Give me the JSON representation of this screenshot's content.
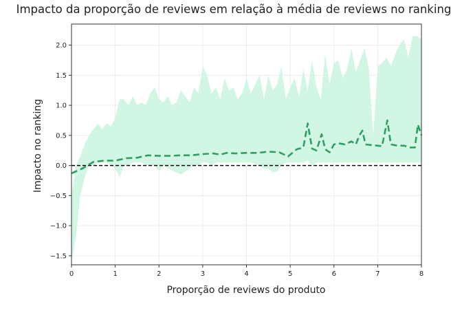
{
  "chart_data": {
    "type": "line",
    "title": "Impacto da proporção de reviews em relação à média de reviews no ranking",
    "xlabel": "Proporção de reviews do produto",
    "ylabel": "Impacto no ranking",
    "xlim": [
      0,
      8
    ],
    "ylim": [
      -1.65,
      2.35
    ],
    "x_ticks": [
      0,
      1,
      2,
      3,
      4,
      5,
      6,
      7,
      8
    ],
    "x_tick_labels": [
      "0",
      "1",
      "2",
      "3",
      "4",
      "5",
      "6",
      "7",
      "8"
    ],
    "y_ticks": [
      -1.5,
      -1.0,
      -0.5,
      0.0,
      0.5,
      1.0,
      1.5,
      2.0
    ],
    "y_tick_labels": [
      "−1.5",
      "−1.0",
      "−0.5",
      "0.0",
      "0.5",
      "1.0",
      "1.5",
      "2.0"
    ],
    "grid": true,
    "reference_line": {
      "y": 0.0,
      "style": "dashed",
      "color": "#000000"
    },
    "colors": {
      "line": "#2e9e62",
      "band": "#cdf5e1",
      "axes": "#333333",
      "grid": "#ececec"
    },
    "series": [
      {
        "style": "dashed",
        "x": [
          0,
          0.25,
          0.5,
          0.75,
          1.0,
          1.25,
          1.5,
          1.75,
          2.0,
          2.25,
          2.5,
          2.75,
          3.0,
          3.25,
          3.4,
          3.55,
          3.75,
          4.0,
          4.25,
          4.5,
          4.75,
          4.95,
          5.15,
          5.3,
          5.4,
          5.5,
          5.6,
          5.72,
          5.8,
          5.9,
          6.0,
          6.1,
          6.25,
          6.4,
          6.5,
          6.58,
          6.65,
          6.72,
          6.85,
          7.0,
          7.1,
          7.15,
          7.22,
          7.3,
          7.45,
          7.6,
          7.75,
          7.85,
          7.92,
          8.0
        ],
        "y": [
          -0.13,
          -0.05,
          0.06,
          0.08,
          0.08,
          0.12,
          0.13,
          0.17,
          0.16,
          0.16,
          0.17,
          0.17,
          0.19,
          0.2,
          0.18,
          0.21,
          0.2,
          0.21,
          0.21,
          0.23,
          0.22,
          0.15,
          0.27,
          0.3,
          0.7,
          0.28,
          0.25,
          0.52,
          0.27,
          0.22,
          0.35,
          0.37,
          0.35,
          0.4,
          0.35,
          0.5,
          0.58,
          0.35,
          0.34,
          0.33,
          0.32,
          0.5,
          0.75,
          0.35,
          0.33,
          0.33,
          0.3,
          0.3,
          0.68,
          0.5
        ]
      }
    ],
    "band": {
      "x": [
        0,
        0.1,
        0.2,
        0.3,
        0.4,
        0.5,
        0.6,
        0.7,
        0.8,
        0.9,
        1.0,
        1.1,
        1.2,
        1.3,
        1.4,
        1.5,
        1.6,
        1.7,
        1.8,
        1.9,
        2.0,
        2.1,
        2.2,
        2.3,
        2.4,
        2.5,
        2.6,
        2.7,
        2.8,
        2.9,
        3.0,
        3.1,
        3.2,
        3.3,
        3.4,
        3.5,
        3.6,
        3.7,
        3.8,
        3.9,
        4.0,
        4.1,
        4.2,
        4.3,
        4.4,
        4.5,
        4.6,
        4.7,
        4.8,
        4.9,
        5.0,
        5.1,
        5.2,
        5.3,
        5.4,
        5.5,
        5.6,
        5.7,
        5.8,
        5.9,
        6.0,
        6.1,
        6.2,
        6.3,
        6.4,
        6.5,
        6.6,
        6.7,
        6.8,
        6.9,
        7.0,
        7.1,
        7.2,
        7.3,
        7.4,
        7.5,
        7.6,
        7.7,
        7.8,
        7.9,
        8.0
      ],
      "upper": [
        -0.5,
        0.0,
        0.15,
        0.35,
        0.5,
        0.6,
        0.7,
        0.6,
        0.7,
        0.65,
        0.8,
        1.1,
        1.1,
        1.0,
        1.15,
        1.0,
        1.05,
        1.0,
        1.2,
        1.3,
        1.1,
        1.05,
        1.15,
        1.0,
        1.05,
        1.25,
        1.15,
        1.05,
        1.3,
        1.2,
        1.65,
        1.5,
        1.2,
        1.3,
        1.1,
        1.45,
        1.25,
        1.3,
        1.1,
        1.2,
        1.45,
        1.2,
        1.35,
        1.5,
        1.1,
        1.5,
        1.25,
        1.35,
        1.65,
        1.1,
        1.3,
        1.45,
        1.15,
        1.6,
        1.25,
        1.75,
        1.3,
        1.1,
        1.85,
        1.35,
        1.7,
        1.75,
        1.45,
        1.6,
        1.95,
        1.55,
        1.75,
        1.95,
        1.6,
        0.5,
        1.65,
        1.7,
        1.8,
        1.65,
        1.85,
        2.0,
        2.1,
        1.8,
        2.15,
        2.15,
        2.1
      ],
      "lower": [
        -1.6,
        -1.2,
        -0.5,
        -0.2,
        0.0,
        0.0,
        0.05,
        0.05,
        0.05,
        0.0,
        -0.05,
        -0.2,
        0.0,
        0.0,
        0.05,
        0.05,
        0.05,
        0.0,
        0.0,
        0.0,
        -0.1,
        0.0,
        -0.05,
        -0.08,
        -0.12,
        -0.15,
        -0.1,
        -0.05,
        0.0,
        0.0,
        0.05,
        0.05,
        0.0,
        0.05,
        0.05,
        0.05,
        0.05,
        0.05,
        0.05,
        0.05,
        0.05,
        0.05,
        0.02,
        0.0,
        -0.05,
        -0.05,
        -0.12,
        -0.1,
        0.0,
        0.05,
        0.05,
        0.05,
        0.05,
        0.05,
        0.08,
        0.0,
        0.05,
        0.05,
        0.05,
        0.05,
        0.05,
        0.05,
        0.05,
        0.05,
        0.05,
        0.05,
        0.05,
        0.05,
        0.05,
        0.05,
        0.05,
        0.05,
        0.05,
        0.05,
        0.05,
        0.05,
        0.05,
        0.05,
        0.05,
        0.05,
        0.05
      ]
    }
  }
}
